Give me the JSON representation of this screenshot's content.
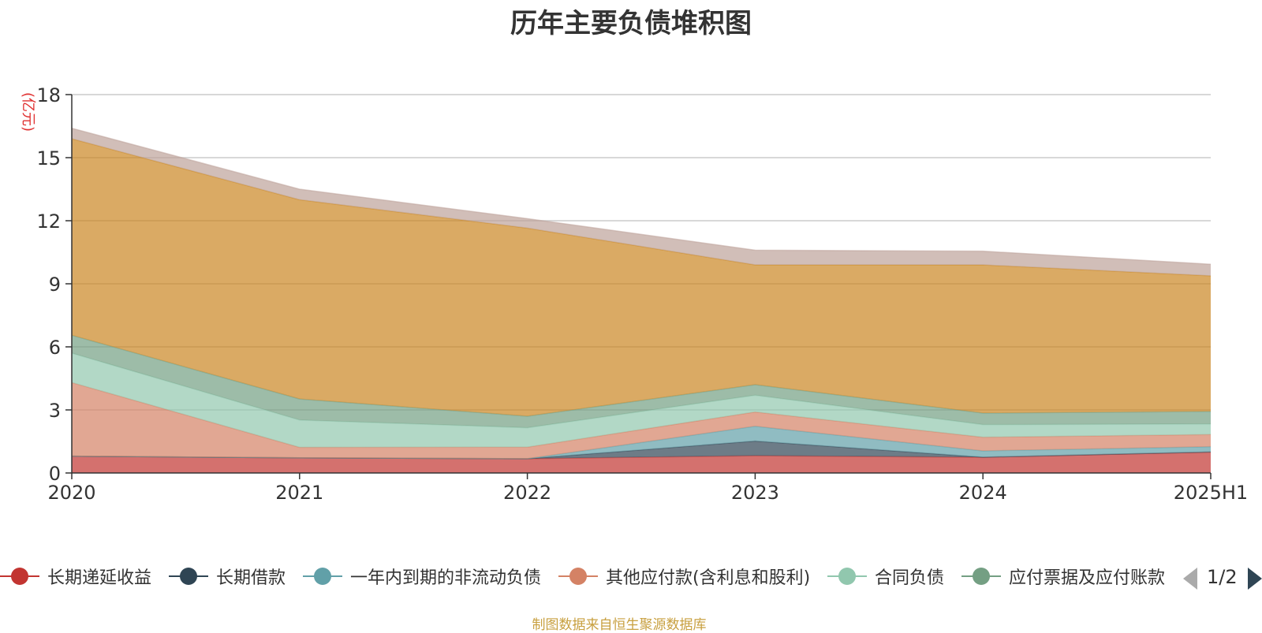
{
  "chart_data": {
    "type": "area",
    "stacked": true,
    "title": "历年主要负债堆积图",
    "ylabel": "(亿元)",
    "ylim": [
      0,
      18
    ],
    "yticks": [
      "0",
      "3",
      "6",
      "9",
      "12",
      "15",
      "18"
    ],
    "categories": [
      "2020",
      "2021",
      "2022",
      "2023",
      "2024",
      "2025H1"
    ],
    "grid": true,
    "legend_position": "bottom",
    "legend_page": "1/2",
    "source_note": "制图数据来自恒生聚源数据库",
    "series": [
      {
        "name": "长期递延收益",
        "color": "#c23531",
        "values": [
          0.8,
          0.72,
          0.68,
          0.82,
          0.75,
          1.0
        ]
      },
      {
        "name": "长期借款",
        "color": "#2f4554",
        "values": [
          0,
          0,
          0,
          0.7,
          0,
          0
        ]
      },
      {
        "name": "一年内到期的非流动负债",
        "color": "#61a0a8",
        "values": [
          0,
          0,
          0,
          0.7,
          0.3,
          0.25
        ]
      },
      {
        "name": "其他应付款(含利息和股利)",
        "color": "#d48265",
        "values": [
          3.5,
          0.5,
          0.55,
          0.68,
          0.65,
          0.58
        ]
      },
      {
        "name": "合同负债",
        "color": "#91c7ae",
        "values": [
          1.4,
          1.3,
          0.92,
          0.8,
          0.6,
          0.5
        ]
      },
      {
        "name": "应付票据及应付账款",
        "color": "#749f83",
        "values": [
          0.85,
          1.0,
          0.55,
          0.5,
          0.55,
          0.6
        ]
      },
      {
        "name": "",
        "color": "#ca8622",
        "values": [
          9.35,
          9.48,
          8.95,
          5.7,
          7.05,
          6.45
        ]
      },
      {
        "name": "",
        "color": "#bda29a",
        "values": [
          0.5,
          0.5,
          0.45,
          0.7,
          0.65,
          0.55
        ]
      }
    ]
  }
}
